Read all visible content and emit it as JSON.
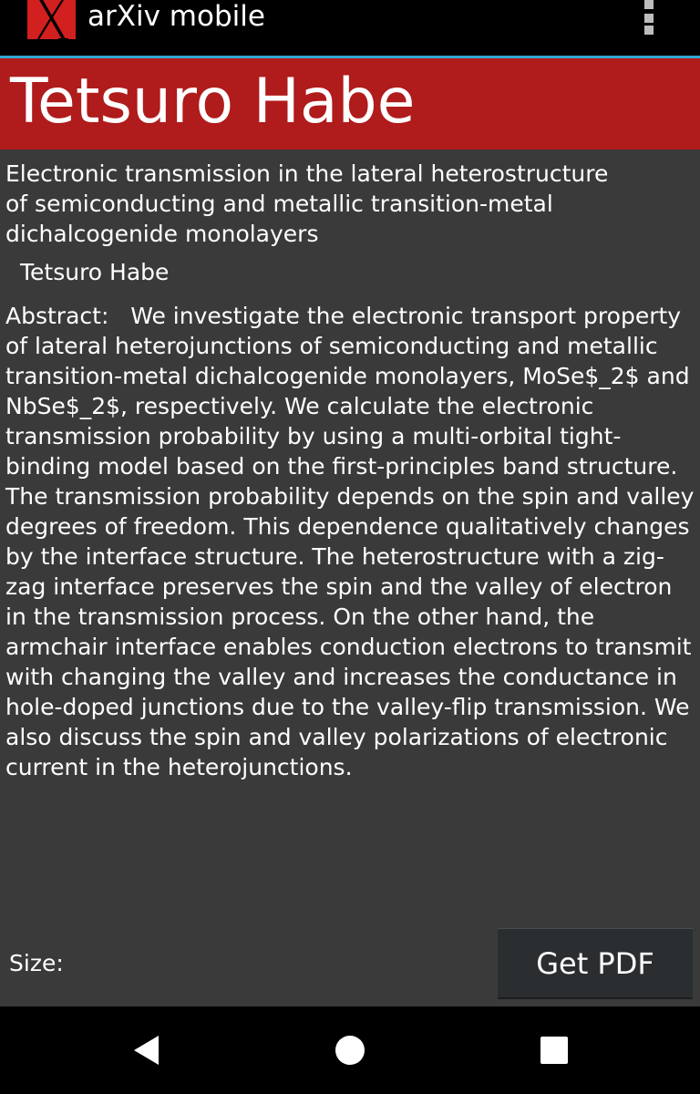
{
  "app": {
    "title": "arXiv mobile",
    "logo_icon": "arxiv-x-logo",
    "menu_icon": "overflow-menu-icon"
  },
  "banner": {
    "author_name": "Tetsuro Habe"
  },
  "paper": {
    "title": "Electronic transmission in the lateral heterostructure of semiconducting and metallic transition-metal dichalcogenide monolayers",
    "authors": "Tetsuro Habe",
    "abstract_label": "Abstract:  ",
    "abstract_text": "We investigate the electronic transport property of lateral heterojunctions of semiconducting and metallic transition-metal dichalcogenide monolayers, MoSe$_2$ and NbSe$_2$, respectively. We calculate the electronic transmission probability by using a multi-orbital tight-binding model based on the first-principles band structure. The transmission probability depends on the spin and valley degrees of freedom. This dependence qualitatively changes by the interface structure. The heterostructure with a zig-zag interface preserves the spin and the valley of electron in the transmission process. On the other hand, the armchair interface enables conduction electrons to transmit with changing the valley and increases the conductance in hole-doped junctions due to the valley-flip transmission. We also discuss the spin and valley polarizations of electronic current in the heterojunctions."
  },
  "footer": {
    "size_label": "Size:",
    "get_pdf_label": "Get PDF"
  },
  "navigation": {
    "back_icon": "back-triangle-icon",
    "home_icon": "home-circle-icon",
    "recents_icon": "recents-square-icon"
  },
  "colors": {
    "action_bar": "#000000",
    "divider_accent": "#33a7d8",
    "banner": "#b01b1b",
    "logo": "#d21f1f",
    "background": "#3a3a3a",
    "button": "#2b2e31",
    "text": "#ffffff"
  }
}
